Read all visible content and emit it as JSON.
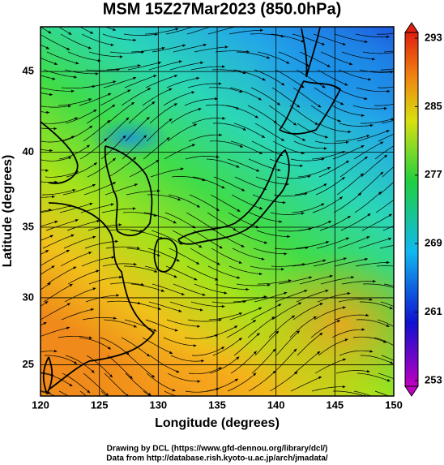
{
  "title": "MSM 15Z27Mar2023 (850.0hPa)",
  "x_axis": {
    "label": "Longitude (degrees)",
    "lim": [
      120,
      150
    ],
    "ticks": [
      120,
      125,
      130,
      135,
      140,
      145,
      150
    ]
  },
  "y_axis": {
    "label": "Latitude  (degrees)",
    "lim": [
      22.6,
      47.6
    ],
    "ticks": [
      25,
      30,
      35,
      40,
      45
    ],
    "projection": "mercator"
  },
  "colorbar": {
    "lim": [
      253,
      293
    ],
    "ticks": [
      253,
      261,
      269,
      277,
      285,
      293
    ]
  },
  "credits": [
    "Drawing by DCL (https://www.gfd-dennou.org/library/dcl/)",
    "Data from http://database.rish.kyoto-u.ac.jp/arch/jmadata/"
  ]
}
